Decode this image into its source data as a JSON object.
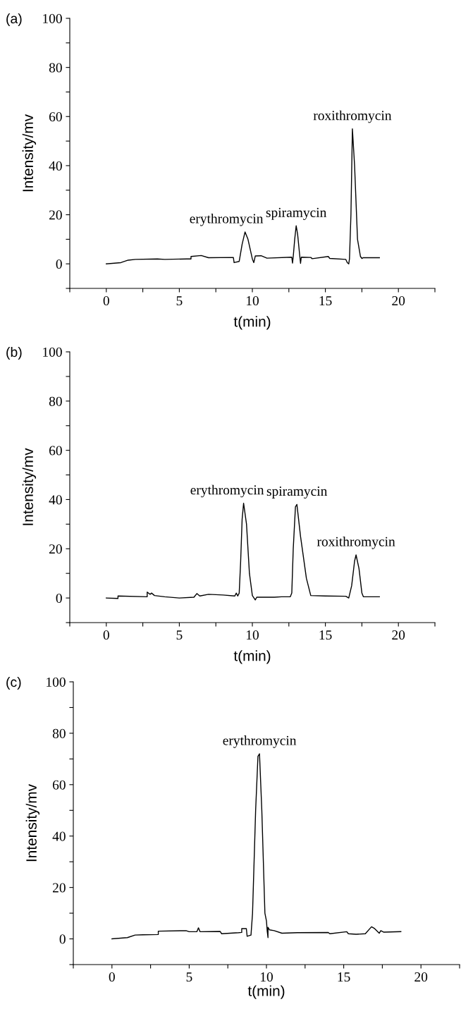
{
  "chart_data": [
    {
      "type": "line",
      "title": "(a)",
      "xlabel": "t(min)",
      "ylabel": "Intensity/mv",
      "xlim": [
        -2.5,
        22.5
      ],
      "ylim": [
        -10,
        100
      ],
      "xticks": [
        {
          "value": -2.5,
          "label": null
        },
        0,
        {
          "value": 2.5,
          "label": null
        },
        5,
        {
          "value": 7.5,
          "label": null
        },
        10,
        {
          "value": 12.5,
          "label": null
        },
        15,
        {
          "value": 17.5,
          "label": null
        },
        20,
        {
          "value": 22.5,
          "label": null
        }
      ],
      "yticks": [
        {
          "value": -10,
          "label": null
        },
        0,
        {
          "value": 10,
          "label": null
        },
        20,
        {
          "value": 30,
          "label": null
        },
        40,
        {
          "value": 50,
          "label": null
        },
        60,
        {
          "value": 70,
          "label": null
        },
        80,
        {
          "value": 90,
          "label": null
        },
        100
      ],
      "series": [
        {
          "color": "#000000",
          "x": [
            0,
            1,
            1.5,
            2,
            3.5,
            4,
            5.5,
            5.8,
            5.8,
            6.5,
            7,
            8.7,
            8.75,
            9.1,
            9.3,
            9.5,
            9.7,
            10,
            10.1,
            10.2,
            10.6,
            11,
            12.7,
            12.75,
            12.8,
            12.9,
            13,
            13.1,
            13.25,
            13.3,
            13.35,
            14,
            14.1,
            15.2,
            15.3,
            16.4,
            16.5,
            16.6,
            16.65,
            16.75,
            16.85,
            17,
            17.2,
            17.4,
            17.5,
            17.6,
            18.7
          ],
          "values": [
            0,
            0.5,
            1.5,
            1.8,
            2,
            1.8,
            2,
            2,
            3,
            3.4,
            2.5,
            2.6,
            0.5,
            1,
            8,
            13,
            10,
            2,
            0.5,
            3.2,
            3.3,
            2.3,
            2.7,
            0.3,
            3,
            10,
            15.5,
            12,
            3,
            0.2,
            2.7,
            2.6,
            2.1,
            3,
            2.2,
            1.8,
            0.5,
            0,
            2,
            20,
            55,
            40,
            10,
            3,
            2.2,
            2.5,
            2.5
          ]
        }
      ],
      "annotations": [
        {
          "text": "erythromycin",
          "x": 9.5,
          "y": 13
        },
        {
          "text": "spiramycin",
          "x": 13,
          "y": 15.5
        },
        {
          "text": "roxithromycin",
          "x": 16.85,
          "y": 55
        }
      ]
    },
    {
      "type": "line",
      "title": "(b)",
      "xlabel": "t(min)",
      "ylabel": "Intensity/mv",
      "xlim": [
        -2.5,
        22.5
      ],
      "ylim": [
        -10,
        100
      ],
      "xticks": [
        {
          "value": -2.5,
          "label": null
        },
        0,
        {
          "value": 2.5,
          "label": null
        },
        5,
        {
          "value": 7.5,
          "label": null
        },
        10,
        {
          "value": 12.5,
          "label": null
        },
        15,
        {
          "value": 17.5,
          "label": null
        },
        20,
        {
          "value": 22.5,
          "label": null
        }
      ],
      "yticks": [
        {
          "value": -10,
          "label": null
        },
        0,
        {
          "value": 10,
          "label": null
        },
        20,
        {
          "value": 30,
          "label": null
        },
        40,
        {
          "value": 50,
          "label": null
        },
        60,
        {
          "value": 70,
          "label": null
        },
        80,
        {
          "value": 90,
          "label": null
        },
        100
      ],
      "series": [
        {
          "color": "#000000",
          "x": [
            0,
            0.8,
            0.8,
            2.8,
            2.8,
            3,
            3.1,
            3.3,
            4,
            5,
            6,
            6.2,
            6.4,
            7,
            8,
            8.8,
            8.9,
            9,
            9.1,
            9.2,
            9.3,
            9.4,
            9.6,
            9.8,
            10,
            10.2,
            10.3,
            11.5,
            12,
            12.6,
            12.7,
            12.8,
            12.95,
            13.05,
            13.3,
            13.7,
            14,
            15,
            16.4,
            16.6,
            16.8,
            17,
            17.1,
            17.3,
            17.5,
            17.6,
            18.7
          ],
          "values": [
            0,
            -0.2,
            0.8,
            0.5,
            2.4,
            1.5,
            2,
            1,
            0.5,
            0,
            0.3,
            1.8,
            0.8,
            1.5,
            1.2,
            0.8,
            2,
            0.8,
            2,
            15,
            32,
            38.5,
            30,
            10,
            1,
            -0.8,
            0.3,
            0.3,
            0.5,
            0.5,
            2,
            20,
            37,
            38,
            25,
            8,
            1,
            0.8,
            0.7,
            0,
            5,
            15,
            17.5,
            12,
            2,
            0.5,
            0.5
          ]
        }
      ],
      "annotations": [
        {
          "text": "erythromycin",
          "x": 9.4,
          "y": 38.5
        },
        {
          "text": "spiramycin",
          "x": 13.05,
          "y": 38
        },
        {
          "text": "roxithromycin",
          "x": 17.1,
          "y": 17.5
        }
      ]
    },
    {
      "type": "line",
      "title": "(c)",
      "xlabel": "t(min)",
      "ylabel": "Intensity/mv",
      "xlim": [
        -2.5,
        22.5
      ],
      "ylim": [
        -10,
        100
      ],
      "xticks": [
        {
          "value": -2.5,
          "label": null
        },
        0,
        {
          "value": 2.5,
          "label": null
        },
        5,
        {
          "value": 7.5,
          "label": null
        },
        10,
        {
          "value": 12.5,
          "label": null
        },
        15,
        {
          "value": 17.5,
          "label": null
        },
        20,
        {
          "value": 22.5,
          "label": null
        }
      ],
      "yticks": [
        {
          "value": -10,
          "label": null
        },
        0,
        {
          "value": 10,
          "label": null
        },
        20,
        {
          "value": 30,
          "label": null
        },
        40,
        {
          "value": 50,
          "label": null
        },
        60,
        {
          "value": 70,
          "label": null
        },
        80,
        {
          "value": 90,
          "label": null
        },
        100
      ],
      "series": [
        {
          "color": "#000000",
          "x": [
            0,
            1,
            1.5,
            2,
            3,
            3,
            4.8,
            5,
            5.5,
            5.6,
            5.7,
            7,
            7.1,
            8.2,
            8.4,
            8.4,
            8.7,
            8.75,
            9,
            9.1,
            9.3,
            9.45,
            9.55,
            9.7,
            9.9,
            10,
            10.05,
            10.1,
            10.1,
            10.2,
            10.5,
            11,
            12,
            14,
            14.1,
            15.2,
            15.3,
            15.8,
            16.4,
            16.8,
            17,
            17.3,
            17.4,
            17.6,
            18.7
          ],
          "values": [
            0,
            0.5,
            1.5,
            1.6,
            1.7,
            3,
            3.2,
            2.8,
            2.8,
            4.3,
            2.8,
            2.9,
            2,
            2.4,
            2.5,
            4,
            4,
            1,
            1.5,
            10,
            50,
            71,
            72,
            50,
            10,
            7,
            3,
            0.5,
            4.5,
            3.5,
            3.2,
            2.2,
            2.4,
            2.5,
            2,
            2.8,
            2,
            1.8,
            2,
            4.7,
            4,
            2.2,
            3.2,
            2.6,
            2.8
          ]
        }
      ],
      "annotations": [
        {
          "text": "erythromycin",
          "x": 9.55,
          "y": 72
        }
      ]
    }
  ]
}
